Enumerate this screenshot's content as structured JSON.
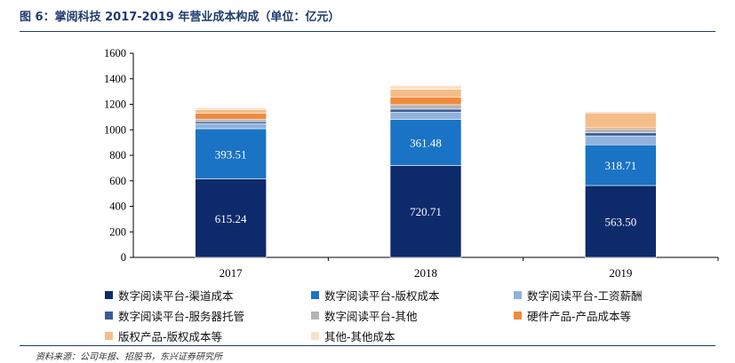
{
  "figure": {
    "title": "图 6：掌阅科技 2017-2019 年营业成本构成（单位：亿元）",
    "source": "资料来源：公司年报、招股书，东兴证券研究所"
  },
  "chart_data": {
    "type": "bar",
    "stacked": true,
    "categories": [
      "2017",
      "2018",
      "2019"
    ],
    "ylim": [
      0,
      1600
    ],
    "yticks": [
      0,
      200,
      400,
      600,
      800,
      1000,
      1200,
      1400,
      1600
    ],
    "grid": false,
    "legend_position": "bottom",
    "series": [
      {
        "name": "数字阅读平台-渠道成本",
        "color": "#0d2a6b",
        "values": [
          615.24,
          720.71,
          563.5
        ],
        "labels": [
          "615.24",
          "720.71",
          "563.50"
        ]
      },
      {
        "name": "数字阅读平台-版权成本",
        "color": "#1a73c4",
        "values": [
          393.51,
          361.48,
          318.71
        ],
        "labels": [
          "393.51",
          "361.48",
          "318.71"
        ]
      },
      {
        "name": "数字阅读平台-工资薪酬",
        "color": "#8fb3dc",
        "values": [
          40,
          55,
          70
        ]
      },
      {
        "name": "数字阅读平台-服务器托管",
        "color": "#3b5d96",
        "values": [
          15,
          25,
          25
        ]
      },
      {
        "name": "数字阅读平台-其他",
        "color": "#b5b5b5",
        "values": [
          20,
          35,
          30
        ]
      },
      {
        "name": "硬件产品-产品成本等",
        "color": "#f08a3c",
        "values": [
          45,
          60,
          10
        ]
      },
      {
        "name": "版权产品-版权成本等",
        "color": "#f5bd8a",
        "values": [
          30,
          60,
          115
        ]
      },
      {
        "name": "其他-其他成本",
        "color": "#fbe0c8",
        "values": [
          15,
          30,
          10
        ]
      }
    ]
  }
}
